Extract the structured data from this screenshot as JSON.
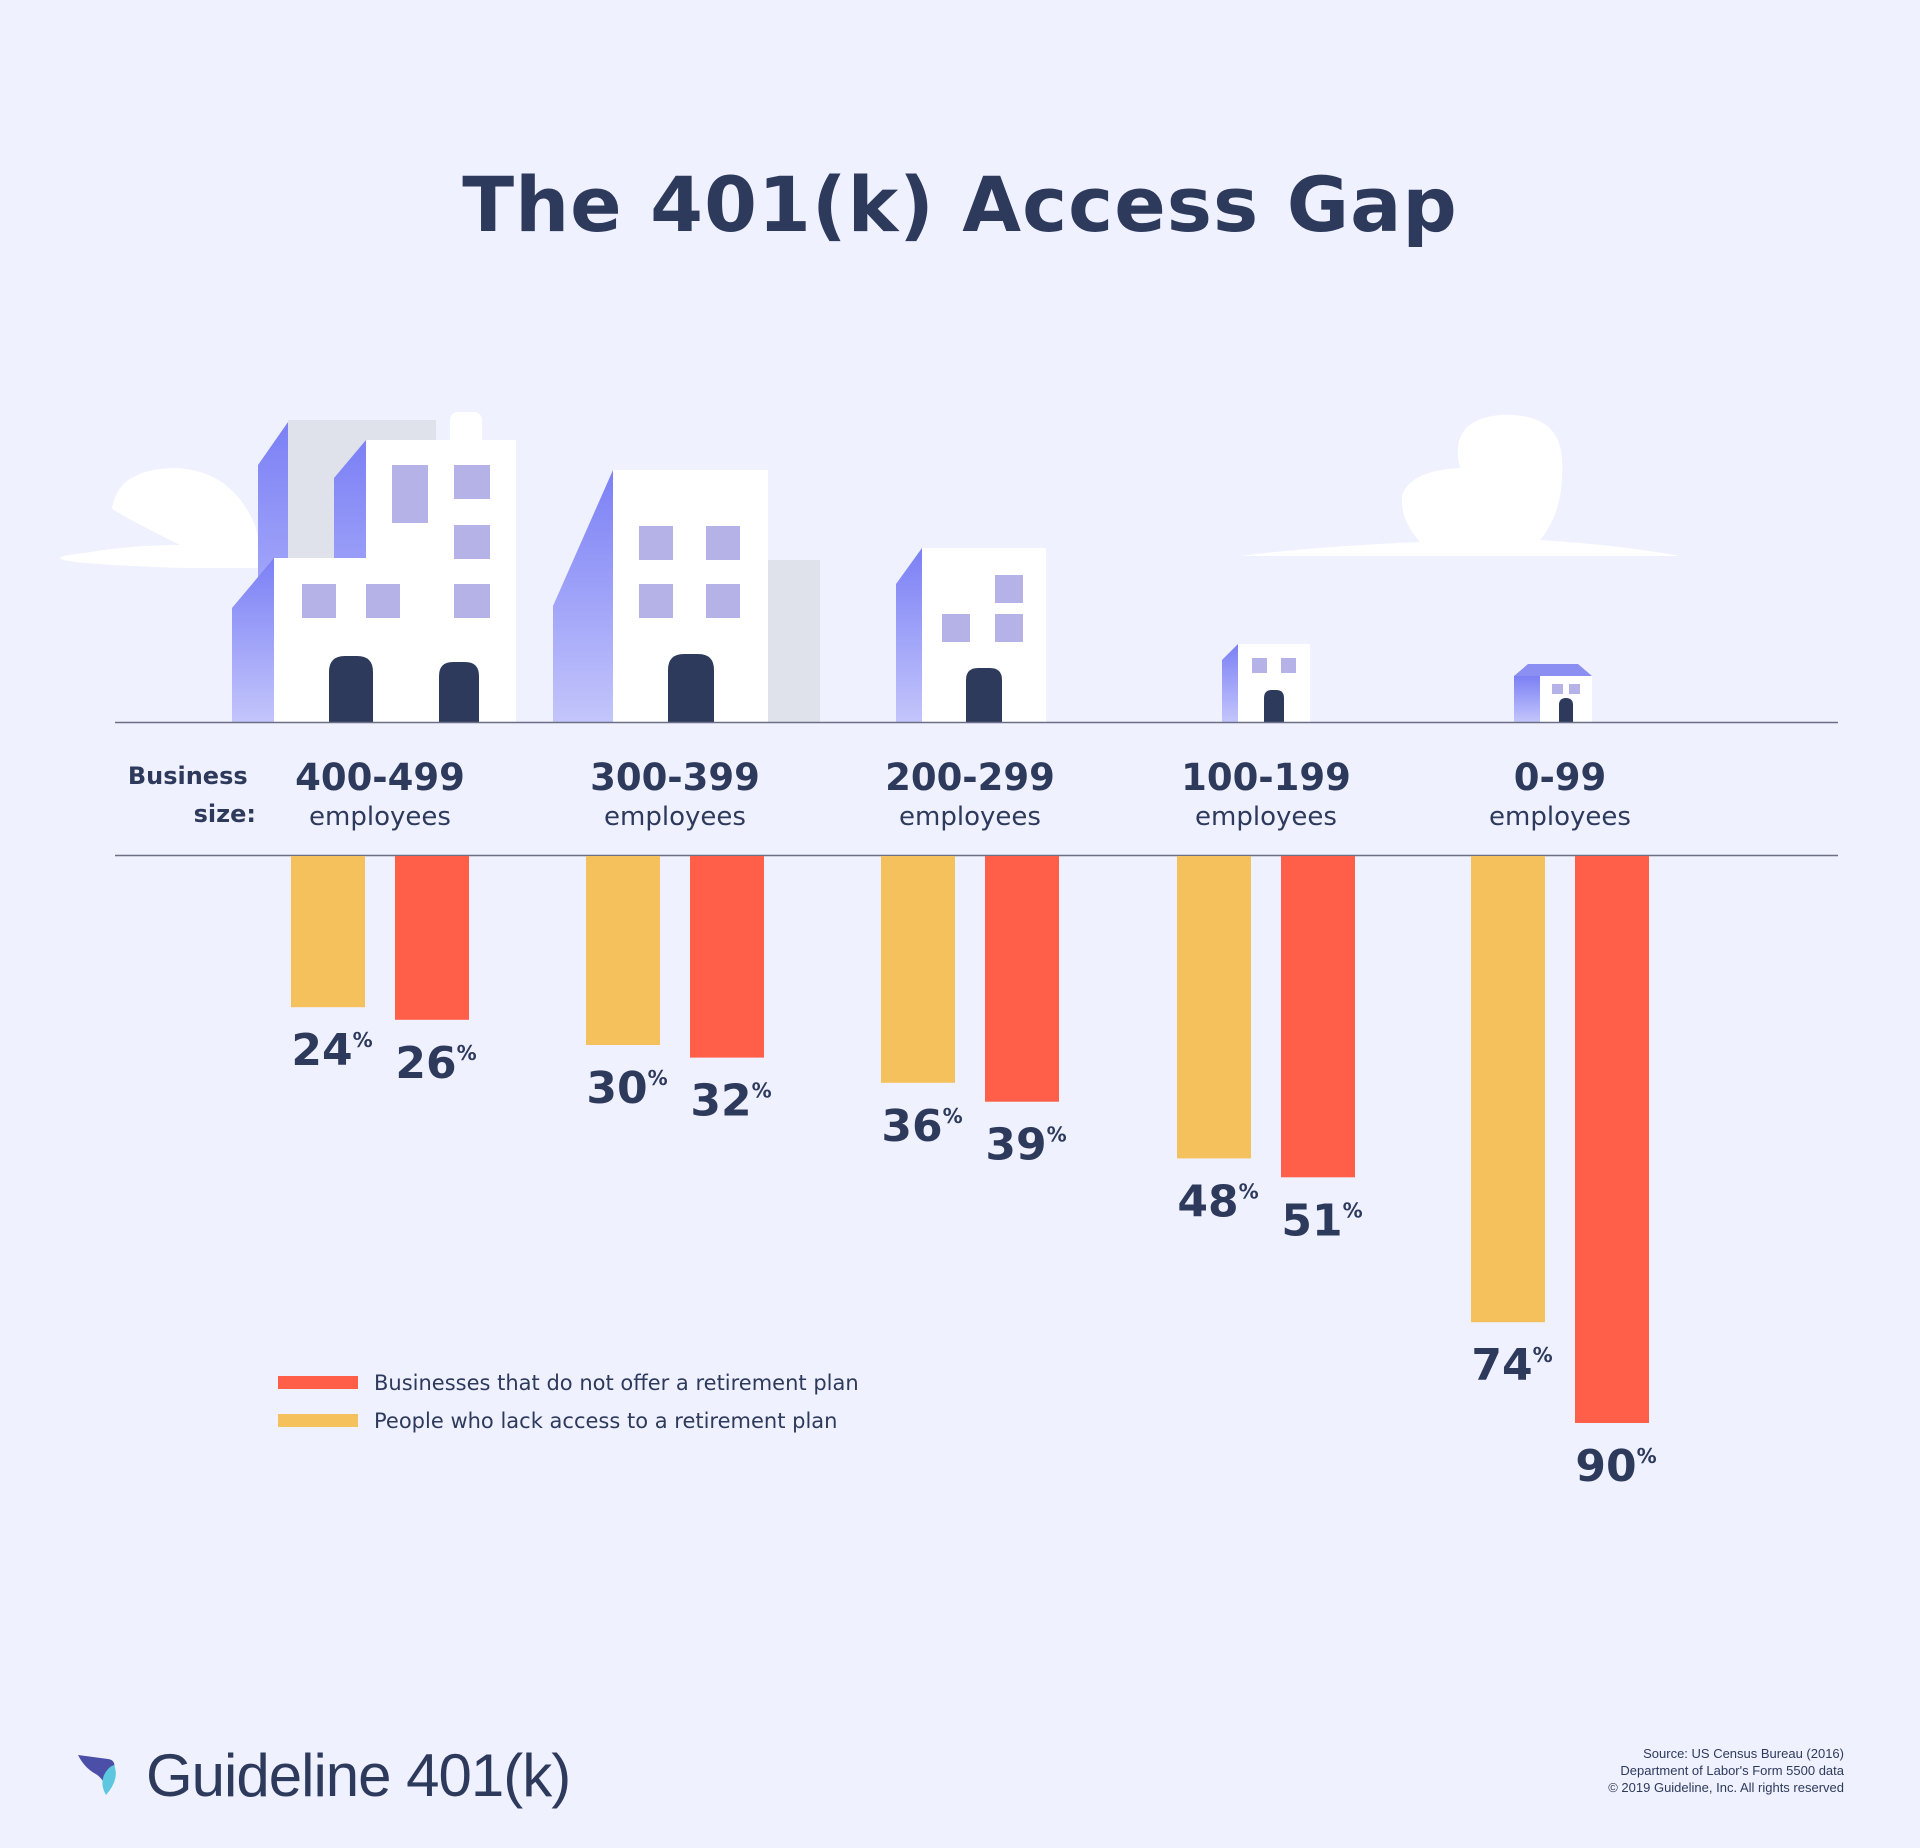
{
  "title": "The 401(k) Access Gap",
  "row_label": "Business\nsize:",
  "chart_data": {
    "type": "bar",
    "orientation": "downward",
    "title": "The 401(k) Access Gap",
    "categories": [
      {
        "range": "400-499",
        "unit": "employees"
      },
      {
        "range": "300-399",
        "unit": "employees"
      },
      {
        "range": "200-299",
        "unit": "employees"
      },
      {
        "range": "100-199",
        "unit": "employees"
      },
      {
        "range": "0-99",
        "unit": "employees"
      }
    ],
    "series": [
      {
        "name": "People who lack access to a retirement plan",
        "color": "#f5c15d",
        "values": [
          24,
          30,
          36,
          48,
          74
        ]
      },
      {
        "name": "Businesses that do not offer a retirement plan",
        "color": "#ff5e48",
        "values": [
          26,
          32,
          39,
          51,
          90
        ]
      }
    ],
    "value_suffix": "%",
    "legend": {
      "placement": "bottom-left",
      "entries": [
        {
          "label": "Businesses that do not offer a retirement plan",
          "color": "#ff5e48"
        },
        {
          "label": "People who lack access to a retirement plan",
          "color": "#f5c15d"
        }
      ]
    },
    "ylim": [
      0,
      100
    ]
  },
  "brand": {
    "name": "Guideline 401(k)"
  },
  "source": [
    "Source: US Census Bureau (2016)",
    "Department of Labor's Form 5500 data",
    "© 2019 Guideline, Inc. All rights reserved"
  ]
}
